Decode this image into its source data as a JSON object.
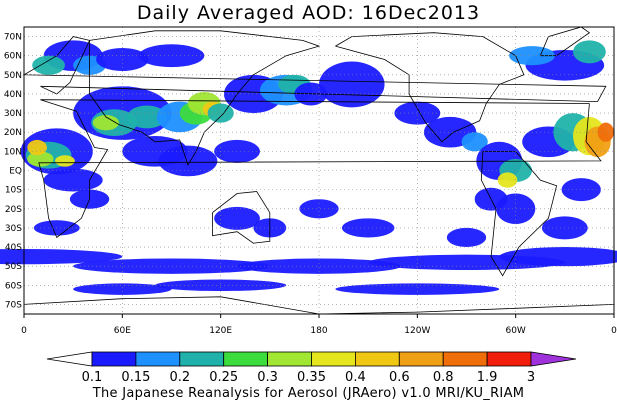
{
  "title": "Daily Averaged AOD: 16Dec2013",
  "footer": "The Japanese Reanalysis for Aerosol (JRAero) v1.0 MRI/KU_RIAM",
  "axes": {
    "lat_labels": [
      "70N",
      "60N",
      "50N",
      "40N",
      "30N",
      "20N",
      "10N",
      "EQ",
      "10S",
      "20S",
      "30S",
      "40S",
      "50S",
      "60S",
      "70S"
    ],
    "lon_labels": [
      "0",
      "60E",
      "120E",
      "180",
      "120W",
      "60W",
      "0"
    ]
  },
  "colorbar": {
    "labels": [
      "0.1",
      "0.15",
      "0.2",
      "0.25",
      "0.3",
      "0.35",
      "0.4",
      "0.6",
      "0.8",
      "1.9",
      "3"
    ],
    "colors": [
      "#ffffff",
      "#1a1aff",
      "#1e90ff",
      "#20b2aa",
      "#3cdc3c",
      "#a0e632",
      "#e6e61e",
      "#f0c814",
      "#f0a014",
      "#f06e0a",
      "#f01e0a",
      "#a032dc"
    ]
  },
  "palette": {
    "land_line": "#000000",
    "grid": "#888888"
  }
}
